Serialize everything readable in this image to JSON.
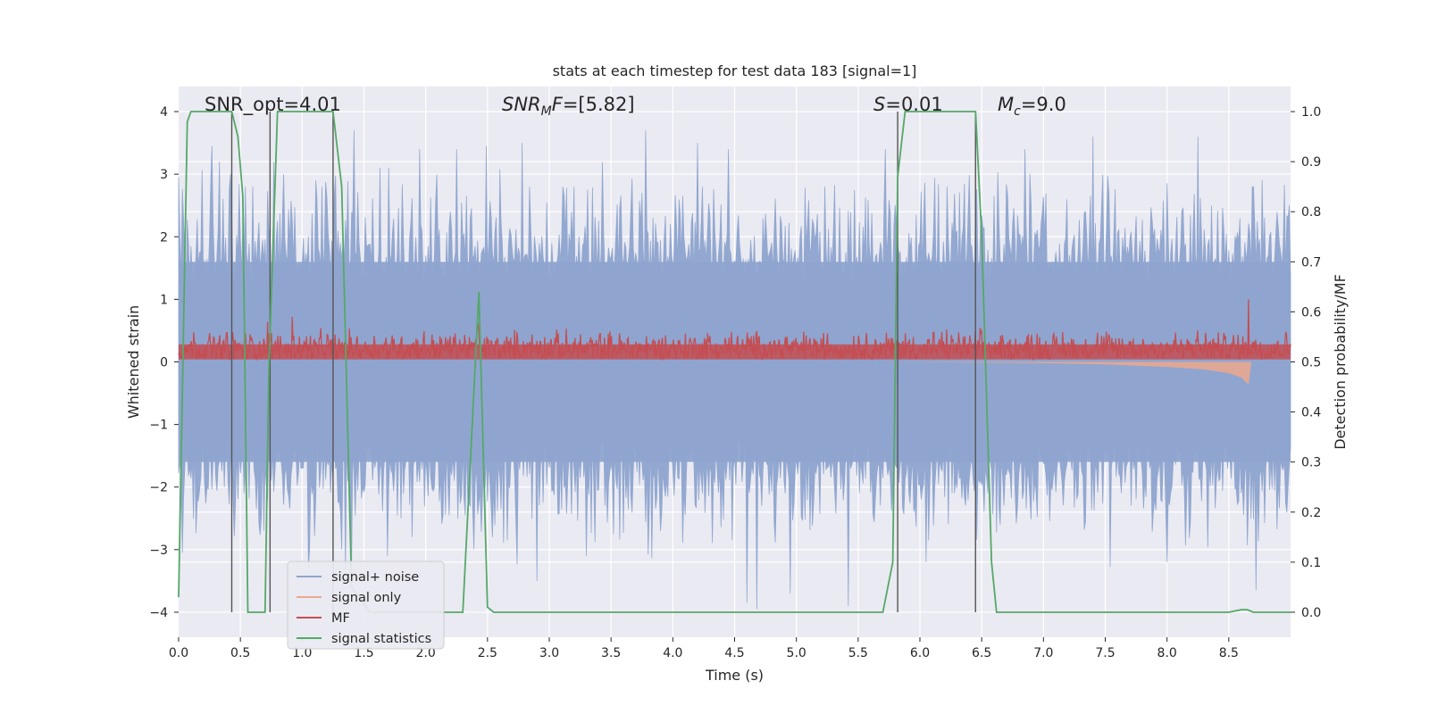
{
  "chart_data": {
    "type": "line",
    "title": "stats at each timestep for test data 183 [signal=1]",
    "xlabel": "Time (s)",
    "ylabel_left": "Whitened strain",
    "ylabel_right": "Detection probability/MF",
    "xlim": [
      0,
      9.0
    ],
    "ylim_left": [
      -4.4,
      4.4
    ],
    "ylim_right": [
      -0.05,
      1.05
    ],
    "xticks": [
      "0.0",
      "0.5",
      "1.0",
      "1.5",
      "2.0",
      "2.5",
      "3.0",
      "3.5",
      "4.0",
      "4.5",
      "5.0",
      "5.5",
      "6.0",
      "6.5",
      "7.0",
      "7.5",
      "8.0",
      "8.5"
    ],
    "yticks_left": [
      "4",
      "3",
      "2",
      "1",
      "0",
      "−1",
      "−2",
      "−3",
      "−4"
    ],
    "yticks_right": [
      "1.0",
      "0.9",
      "0.8",
      "0.7",
      "0.6",
      "0.5",
      "0.4",
      "0.3",
      "0.2",
      "0.1",
      "0.0"
    ],
    "grid": true,
    "annotations": {
      "snr_opt": "SNR_opt=4.01",
      "snr_mf_prefix": "SNR",
      "snr_mf_sub": "M",
      "snr_mf_suffix": "F=[5.82]",
      "s_prefix": "S",
      "s_suffix": "=0.01",
      "mc_prefix": "M",
      "mc_sub": "c",
      "mc_suffix": "=9.0"
    },
    "legend": {
      "placement": "lower-left",
      "entries": [
        {
          "label": "signal+ noise",
          "color": "#8fa5cf"
        },
        {
          "label": "signal only",
          "color": "#e8a98f"
        },
        {
          "label": "MF",
          "color": "#c44e52"
        },
        {
          "label": "signal statistics",
          "color": "#55a868"
        }
      ]
    },
    "series": [
      {
        "name": "signal statistics",
        "axis": "right",
        "color": "#55a868",
        "x": [
          0.0,
          0.07,
          0.1,
          0.4,
          0.43,
          0.48,
          0.52,
          0.56,
          0.7,
          0.73,
          0.8,
          0.82,
          1.25,
          1.32,
          1.4,
          1.55,
          2.2,
          2.3,
          2.43,
          2.5,
          2.55,
          2.9,
          3.0,
          5.7,
          5.78,
          5.82,
          5.88,
          6.45,
          6.5,
          6.58,
          6.62,
          8.5,
          8.6,
          8.65,
          8.7,
          9.0
        ],
        "y": [
          0.03,
          0.98,
          1.0,
          1.0,
          1.0,
          0.95,
          0.83,
          0.0,
          0.0,
          0.48,
          1.0,
          1.0,
          1.0,
          0.85,
          0.05,
          0.0,
          0.0,
          0.0,
          0.64,
          0.01,
          0.0,
          0.0,
          0.0,
          0.0,
          0.1,
          0.87,
          1.0,
          1.0,
          0.75,
          0.1,
          0.0,
          0.0,
          0.005,
          0.005,
          0.0,
          0.0
        ]
      }
    ],
    "signal_only": {
      "name": "signal only",
      "axis": "left",
      "color": "#e8a98f",
      "x": [
        5.82,
        6.5,
        7.0,
        7.5,
        8.0,
        8.3,
        8.5,
        8.6,
        8.66,
        8.68
      ],
      "envelope": [
        0.0,
        0.01,
        0.02,
        0.04,
        0.08,
        0.12,
        0.18,
        0.25,
        0.36,
        0.05
      ]
    },
    "event_markers": {
      "color": "#555555",
      "x": [
        0.43,
        0.74,
        1.25,
        5.82,
        6.45
      ]
    },
    "noisy_series": [
      {
        "name": "signal+ noise",
        "axis": "left",
        "color": "#8fa5cf",
        "dense_band": [
          -1.6,
          1.6
        ],
        "peaks": [
          {
            "x": 0.03,
            "y": -3.05
          },
          {
            "x": 0.27,
            "y": 3.45
          },
          {
            "x": 0.33,
            "y": 3.2
          },
          {
            "x": 0.42,
            "y": 3.0
          },
          {
            "x": 0.85,
            "y": 3.0
          },
          {
            "x": 1.42,
            "y": 3.7
          },
          {
            "x": 1.7,
            "y": 3.1
          },
          {
            "x": 1.95,
            "y": 3.4
          },
          {
            "x": 2.25,
            "y": 3.4
          },
          {
            "x": 2.49,
            "y": 3.45
          },
          {
            "x": 2.78,
            "y": 3.5
          },
          {
            "x": 2.9,
            "y": -3.5
          },
          {
            "x": 3.3,
            "y": -3.1
          },
          {
            "x": 3.78,
            "y": 3.7
          },
          {
            "x": 4.2,
            "y": 3.5
          },
          {
            "x": 4.45,
            "y": 3.4
          },
          {
            "x": 4.6,
            "y": -3.85
          },
          {
            "x": 4.68,
            "y": -3.95
          },
          {
            "x": 4.95,
            "y": -3.7
          },
          {
            "x": 5.42,
            "y": -3.9
          },
          {
            "x": 5.72,
            "y": 3.4
          },
          {
            "x": 6.85,
            "y": 3.4
          },
          {
            "x": 7.4,
            "y": 3.6
          },
          {
            "x": 8.0,
            "y": -3.2
          },
          {
            "x": 8.25,
            "y": 3.6
          },
          {
            "x": 8.72,
            "y": -3.65
          },
          {
            "x": 8.98,
            "y": 2.3
          }
        ],
        "trough_level": -2.9,
        "crest_level": 2.6
      },
      {
        "name": "MF",
        "axis": "right",
        "color": "#c44e52",
        "band": [
          0.505,
          0.555
        ],
        "peaks": [
          {
            "x": 0.72,
            "y": 0.58
          },
          {
            "x": 0.92,
            "y": 0.59
          },
          {
            "x": 2.42,
            "y": 0.575
          },
          {
            "x": 8.66,
            "y": 0.625
          }
        ]
      }
    ]
  }
}
